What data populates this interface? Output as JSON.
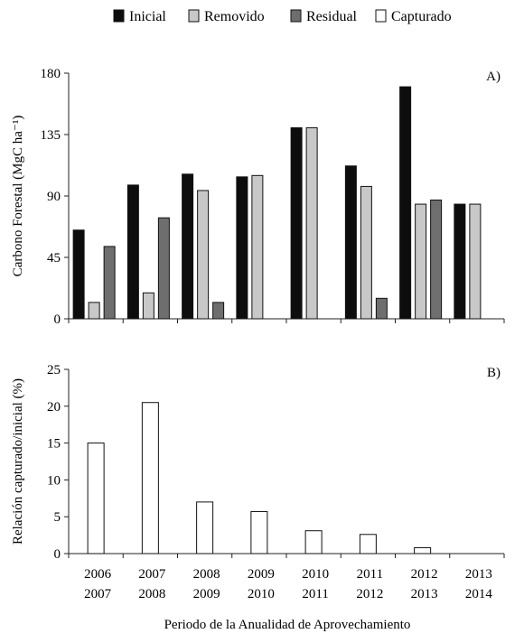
{
  "legend": [
    {
      "label": "Inicial",
      "color": "#0d0d0d"
    },
    {
      "label": "Removido",
      "color": "#c8c8c8"
    },
    {
      "label": "Residual",
      "color": "#6e6e6e"
    },
    {
      "label": "Capturado",
      "color": "#ffffff"
    }
  ],
  "xlabel": "Periodo de la Anualidad de Aprovechamiento",
  "categories": [
    [
      "2006",
      "2007"
    ],
    [
      "2007",
      "2008"
    ],
    [
      "2008",
      "2009"
    ],
    [
      "2009",
      "2010"
    ],
    [
      "2010",
      "2011"
    ],
    [
      "2011",
      "2012"
    ],
    [
      "2012",
      "2013"
    ],
    [
      "2013",
      "2014"
    ]
  ],
  "chart_data": [
    {
      "type": "bar",
      "panel_label": "A)",
      "ylabel": "Carbono Forestal (MgC ha⁻¹)",
      "ylim": [
        0,
        180
      ],
      "yticks": [
        0,
        45,
        90,
        135,
        180
      ],
      "series": [
        {
          "name": "Inicial",
          "color": "#0d0d0d",
          "values": [
            65,
            98,
            106,
            104,
            140,
            112,
            170,
            84
          ]
        },
        {
          "name": "Removido",
          "color": "#c8c8c8",
          "values": [
            12,
            19,
            94,
            105,
            140,
            97,
            84,
            84
          ]
        },
        {
          "name": "Residual",
          "color": "#6e6e6e",
          "values": [
            53,
            74,
            12,
            0,
            0,
            15,
            87,
            0
          ]
        }
      ]
    },
    {
      "type": "bar",
      "panel_label": "B)",
      "ylabel": "Relación capturado/inicial (%)",
      "ylim": [
        0,
        25
      ],
      "yticks": [
        0,
        5,
        10,
        15,
        20,
        25
      ],
      "series": [
        {
          "name": "Capturado",
          "color": "#ffffff",
          "values": [
            15,
            20.5,
            7,
            5.7,
            3.1,
            2.6,
            0.8,
            0
          ]
        }
      ]
    }
  ]
}
